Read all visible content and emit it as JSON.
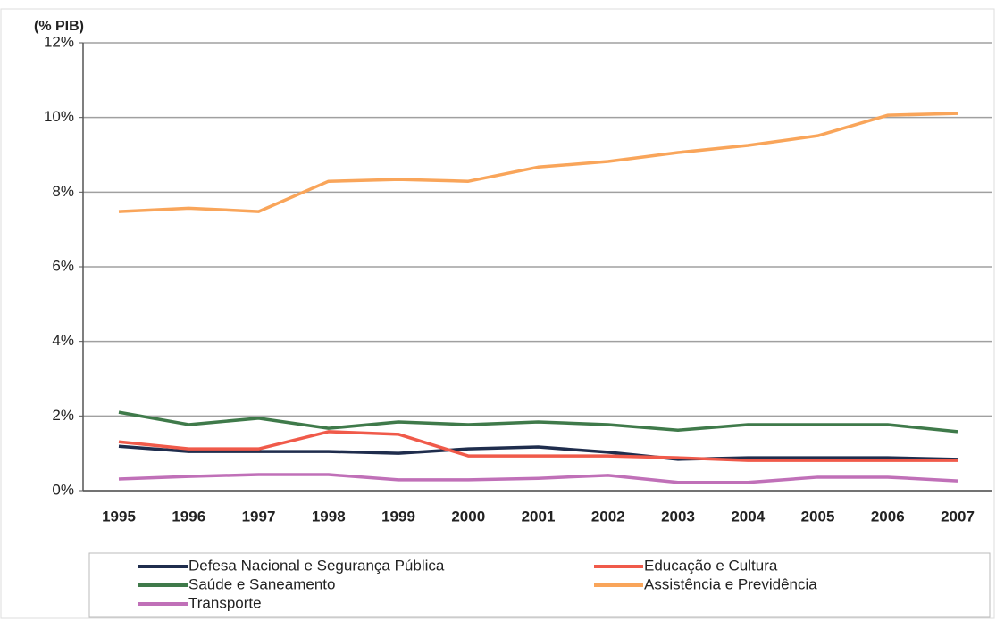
{
  "chart_data": {
    "type": "line",
    "y_label": "(% PIB)",
    "categories": [
      "1995",
      "1996",
      "1997",
      "1998",
      "1999",
      "2000",
      "2001",
      "2002",
      "2003",
      "2004",
      "2005",
      "2006",
      "2007"
    ],
    "ylim": [
      0,
      12
    ],
    "yticks": [
      {
        "value": 0,
        "label": "0%"
      },
      {
        "value": 2,
        "label": "2%"
      },
      {
        "value": 4,
        "label": "4%"
      },
      {
        "value": 6,
        "label": "6%"
      },
      {
        "value": 8,
        "label": "8%"
      },
      {
        "value": 10,
        "label": "10%"
      },
      {
        "value": 12,
        "label": "12%"
      }
    ],
    "grid": true,
    "legend": "bottom",
    "series": [
      {
        "name": "Defesa Nacional e Segurança Pública",
        "color": "#1f2d4d",
        "values": [
          1.19,
          1.05,
          1.05,
          1.05,
          1.0,
          1.12,
          1.17,
          1.03,
          0.84,
          0.88,
          0.88,
          0.88,
          0.84
        ]
      },
      {
        "name": "Educação e Cultura",
        "color": "#f05a4a",
        "values": [
          1.31,
          1.12,
          1.12,
          1.58,
          1.51,
          0.93,
          0.93,
          0.93,
          0.88,
          0.81,
          0.81,
          0.81,
          0.81
        ]
      },
      {
        "name": "Saúde e Saneamento",
        "color": "#3f7a4a",
        "values": [
          2.1,
          1.77,
          1.94,
          1.67,
          1.84,
          1.77,
          1.84,
          1.77,
          1.62,
          1.77,
          1.77,
          1.77,
          1.58
        ]
      },
      {
        "name": "Assistência e Previdência",
        "color": "#f9a55a",
        "values": [
          7.48,
          7.57,
          7.48,
          8.29,
          8.34,
          8.29,
          8.67,
          8.82,
          9.06,
          9.25,
          9.51,
          10.06,
          10.11
        ]
      },
      {
        "name": "Transporte",
        "color": "#c070b8",
        "values": [
          0.31,
          0.38,
          0.43,
          0.43,
          0.29,
          0.29,
          0.33,
          0.41,
          0.22,
          0.22,
          0.36,
          0.36,
          0.26
        ]
      }
    ]
  }
}
